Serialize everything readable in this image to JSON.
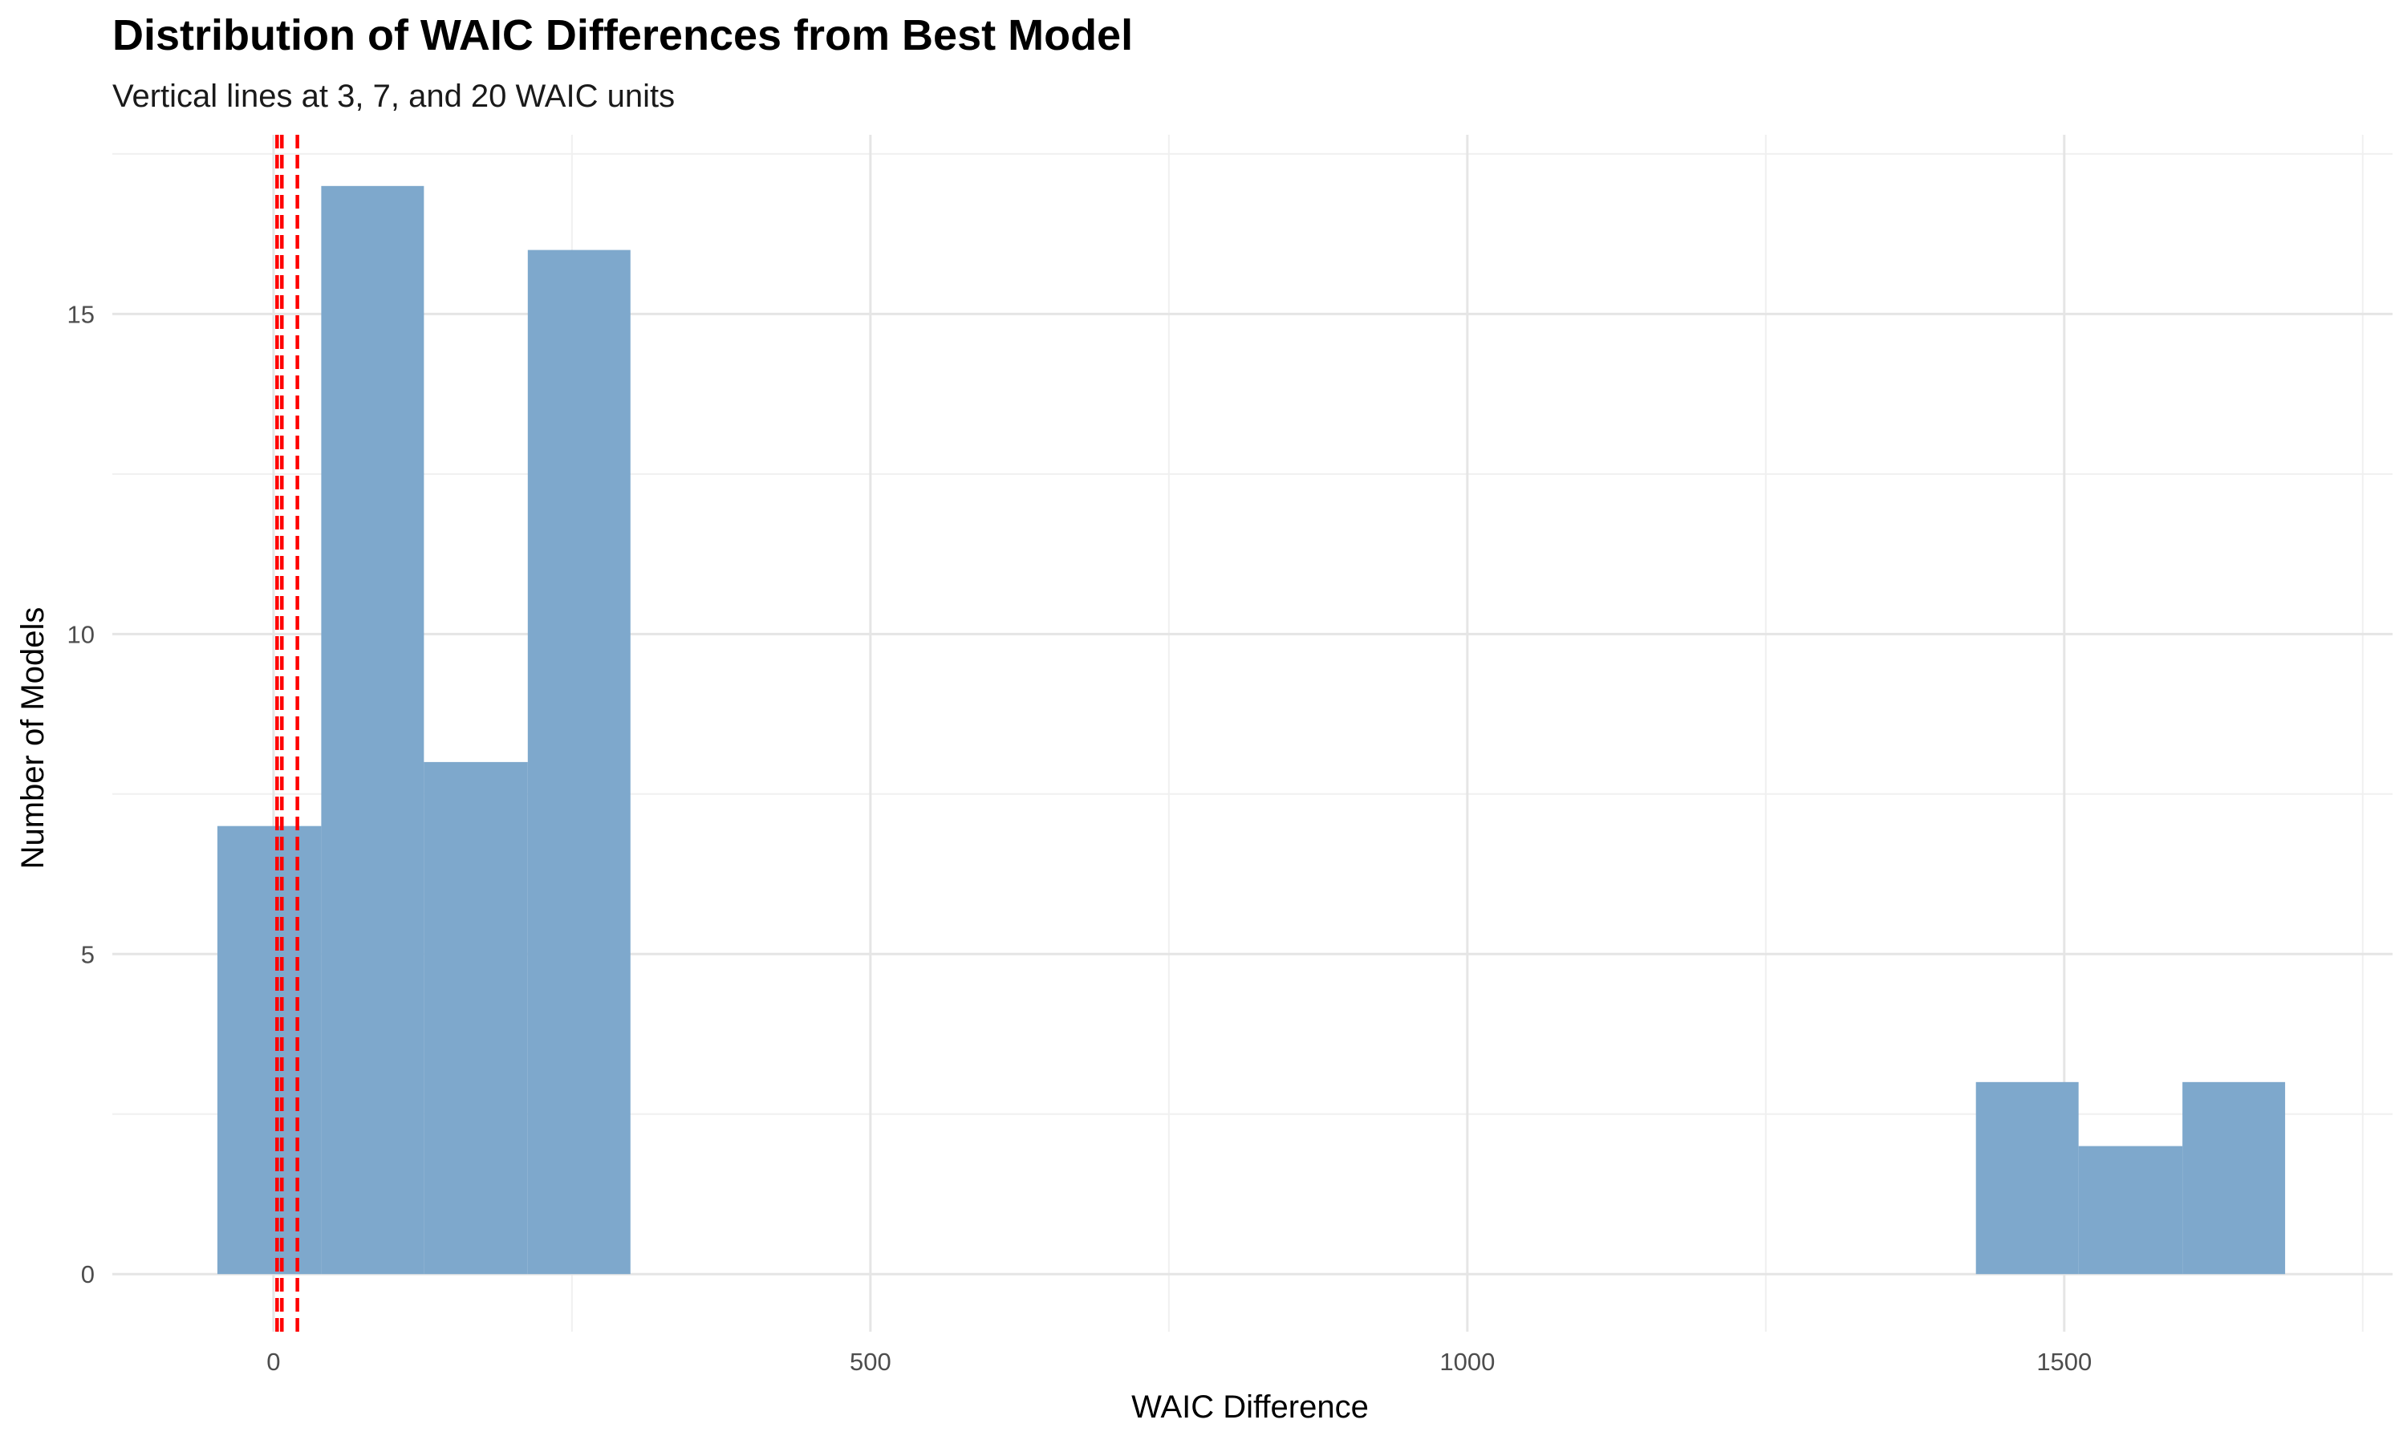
{
  "chart_data": {
    "type": "bar",
    "subtype": "histogram",
    "title": "Distribution of WAIC Differences from Best Model",
    "subtitle": "Vertical lines at 3, 7, and 20 WAIC units",
    "xlabel": "WAIC Difference",
    "ylabel": "Number of Models",
    "xlim": [
      -135,
      1775
    ],
    "ylim": [
      -0.9,
      17.8
    ],
    "x_ticks": [
      0,
      500,
      1000,
      1500
    ],
    "x_minor_ticks": [
      250,
      750,
      1250,
      1750
    ],
    "y_ticks": [
      0,
      5,
      10,
      15
    ],
    "y_minor_ticks": [
      2.5,
      7.5,
      12.5,
      17.5
    ],
    "grid": true,
    "bar_color": "#7EA8CC",
    "reference_line_color": "#FF0000",
    "reference_lines": [
      3,
      7,
      20
    ],
    "bins": [
      {
        "x0": -47,
        "x1": 40,
        "count": 7
      },
      {
        "x0": 40,
        "x1": 126,
        "count": 17
      },
      {
        "x0": 126,
        "x1": 213,
        "count": 8
      },
      {
        "x0": 213,
        "x1": 299,
        "count": 16
      },
      {
        "x0": 1426,
        "x1": 1512,
        "count": 3
      },
      {
        "x0": 1512,
        "x1": 1599,
        "count": 2
      },
      {
        "x0": 1599,
        "x1": 1685,
        "count": 3
      }
    ]
  }
}
